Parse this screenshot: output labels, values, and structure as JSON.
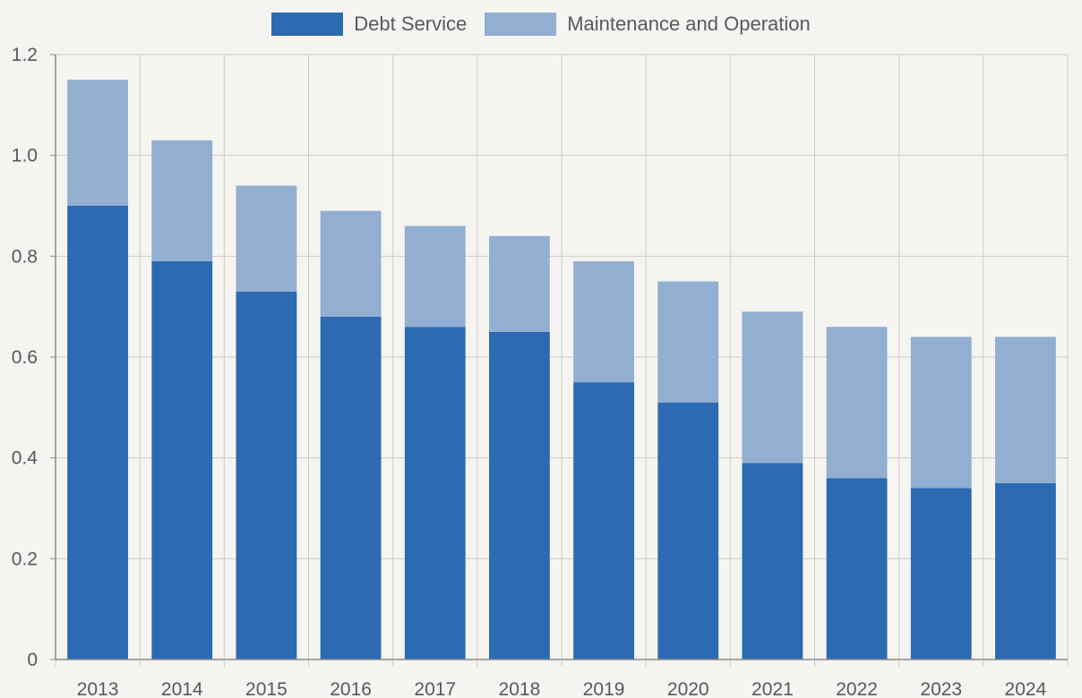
{
  "colors": {
    "background": "#f5f4f0",
    "grid": "#cfccc6",
    "axis": "#8a8a8a",
    "text": "#555a60"
  },
  "chart_data": {
    "type": "bar",
    "stacked": true,
    "categories": [
      "2013",
      "2014",
      "2015",
      "2016",
      "2017",
      "2018",
      "2019",
      "2020",
      "2021",
      "2022",
      "2023",
      "2024"
    ],
    "series": [
      {
        "name": "Debt Service",
        "color": "#2c6ab1",
        "values": [
          0.9,
          0.79,
          0.73,
          0.68,
          0.66,
          0.65,
          0.55,
          0.51,
          0.39,
          0.36,
          0.34,
          0.35
        ]
      },
      {
        "name": "Maintenance and Operation",
        "color": "#92aed1",
        "values": [
          0.25,
          0.24,
          0.21,
          0.21,
          0.2,
          0.19,
          0.24,
          0.24,
          0.3,
          0.3,
          0.3,
          0.29
        ]
      }
    ],
    "ylim": [
      0,
      1.2
    ],
    "yticks": [
      "0",
      "0.2",
      "0.4",
      "0.6",
      "0.8",
      "1.0",
      "1.2"
    ],
    "grid": true,
    "legend_position": "top-center"
  }
}
